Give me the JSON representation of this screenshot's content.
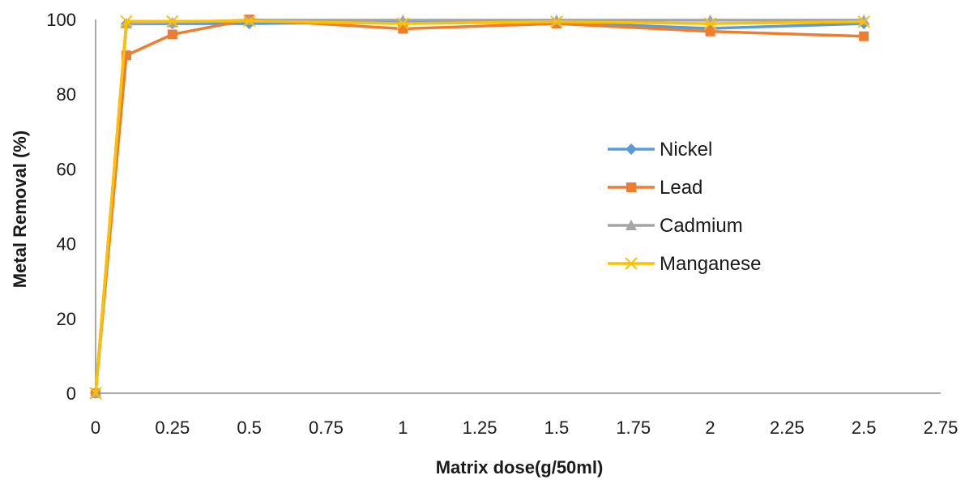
{
  "chart_data": {
    "type": "line",
    "title": "",
    "xlabel": "Matrix dose(g/50ml)",
    "ylabel": "Metal Removal (%)",
    "xlim": [
      0,
      2.75
    ],
    "ylim": [
      0,
      100
    ],
    "x_ticks": [
      "0",
      "0.25",
      "0.5",
      "0.75",
      "1",
      "1.25",
      "1.5",
      "1.75",
      "2",
      "2.25",
      "2.5",
      "2.75"
    ],
    "y_ticks": [
      "0",
      "20",
      "40",
      "60",
      "80",
      "100"
    ],
    "grid": false,
    "legend_position": "right",
    "x": [
      0,
      0.1,
      0.25,
      0.5,
      1,
      1.5,
      2,
      2.5
    ],
    "series": [
      {
        "name": "Nickel",
        "color": "#5b9bd5",
        "marker": "diamond",
        "values": [
          0,
          98.8,
          98.9,
          98.9,
          99.3,
          99.2,
          97.6,
          98.9
        ]
      },
      {
        "name": "Lead",
        "color": "#ed7d31",
        "marker": "square",
        "values": [
          0,
          90.4,
          96.0,
          100.0,
          97.5,
          98.9,
          96.8,
          95.5
        ]
      },
      {
        "name": "Cadmium",
        "color": "#a5a5a5",
        "marker": "triangle",
        "values": [
          0,
          98.9,
          99.2,
          99.8,
          99.8,
          99.8,
          99.8,
          99.8
        ]
      },
      {
        "name": "Manganese",
        "color": "#ffc000",
        "marker": "x",
        "values": [
          0,
          99.5,
          99.5,
          99.6,
          98.9,
          99.4,
          98.9,
          99.4
        ]
      }
    ]
  }
}
